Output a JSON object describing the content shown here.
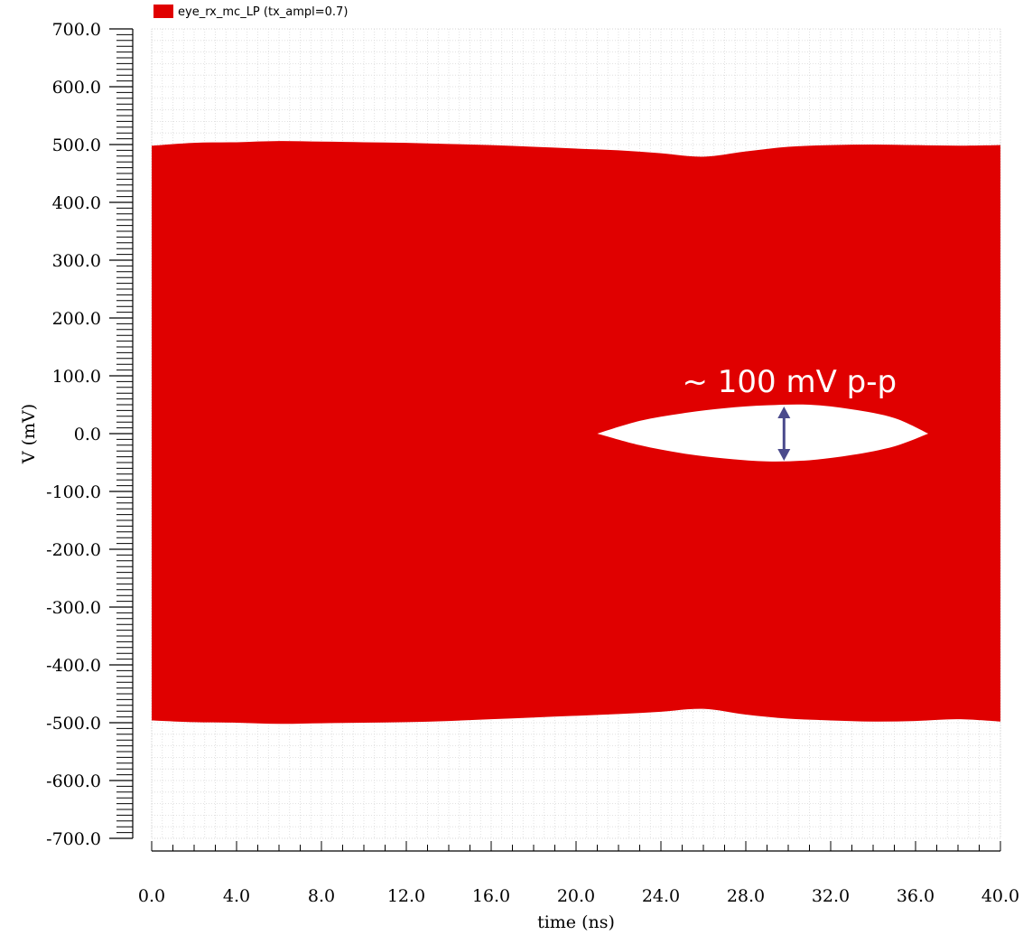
{
  "chart_data": {
    "type": "area",
    "title": "",
    "xlabel": "time (ns)",
    "ylabel": "V (mV)",
    "xlim": [
      0,
      40
    ],
    "ylim": [
      -700,
      700
    ],
    "x_ticks": [
      "0.0",
      "4.0",
      "8.0",
      "12.0",
      "16.0",
      "20.0",
      "24.0",
      "28.0",
      "32.0",
      "36.0",
      "40.0"
    ],
    "y_ticks": [
      "700.0",
      "600.0",
      "500.0",
      "400.0",
      "300.0",
      "200.0",
      "100.0",
      "0.0",
      "-100.0",
      "-200.0",
      "-300.0",
      "-400.0",
      "-500.0",
      "-600.0",
      "-700.0"
    ],
    "grid": true,
    "legend": {
      "position": "top-left",
      "color": "#e00000"
    },
    "series": [
      {
        "name": "eye_rx_mc_LP (tx_ampl=0.7)",
        "color": "#e00000",
        "upper_envelope": {
          "x": [
            0,
            2,
            4,
            6,
            8,
            10,
            12,
            14,
            16,
            18,
            20,
            22,
            24,
            26,
            28,
            30,
            32,
            34,
            36,
            38,
            40
          ],
          "y": [
            498,
            503,
            504,
            506,
            505,
            504,
            503,
            501,
            499,
            496,
            493,
            490,
            485,
            479,
            488,
            496,
            499,
            500,
            499,
            498,
            499
          ]
        },
        "lower_envelope": {
          "x": [
            0,
            2,
            4,
            6,
            8,
            10,
            12,
            14,
            16,
            18,
            20,
            22,
            24,
            26,
            28,
            30,
            32,
            34,
            36,
            38,
            40
          ],
          "y": [
            -496,
            -499,
            -500,
            -502,
            -501,
            -500,
            -499,
            -497,
            -494,
            -491,
            -488,
            -485,
            -481,
            -476,
            -486,
            -493,
            -496,
            -498,
            -497,
            -494,
            -498
          ]
        },
        "eye_opening": {
          "x": [
            21,
            23,
            25,
            27,
            29,
            31,
            33,
            35,
            36.6
          ],
          "top": [
            0,
            22,
            35,
            44,
            49,
            50,
            42,
            27,
            0
          ],
          "bottom": [
            0,
            -20,
            -34,
            -43,
            -48,
            -46,
            -37,
            -22,
            0
          ]
        }
      }
    ],
    "annotations": [
      {
        "text": "~ 100 mV p-p",
        "x": 29.8,
        "y_from": -50,
        "y_to": 50,
        "arrow_color": "#4a4a8c"
      }
    ]
  }
}
